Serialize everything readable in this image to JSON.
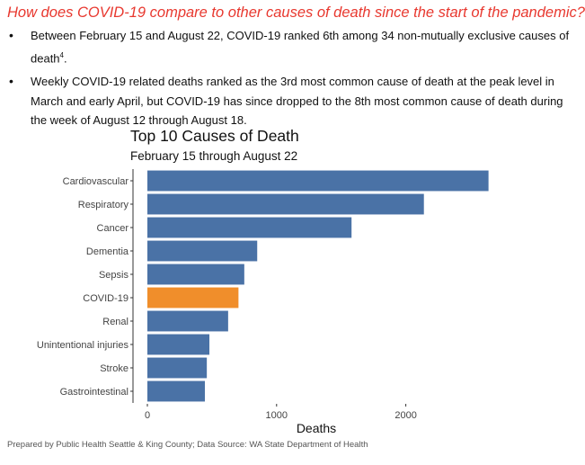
{
  "header": {
    "question": "How does COVID-19 compare to other causes of death since the start of the pandemic?",
    "bullets": [
      {
        "text": "Between February 15 and August 22, COVID-19 ranked 6th among 34 non-mutually exclusive causes of death",
        "sup": "4",
        "tail": "."
      },
      {
        "text": "Weekly COVID-19 related deaths ranked as the 3rd most common cause of death at the peak level in March and early April, but COVID-19 has since dropped to the 8th most common cause of death during the week of August 12 through August 18.",
        "sup": "",
        "tail": ""
      }
    ]
  },
  "chart_data": {
    "type": "bar",
    "orientation": "horizontal",
    "title": "Top 10 Causes of Death",
    "subtitle": "February 15 through August 22",
    "xlabel": "Deaths",
    "ylabel": "",
    "xlim": [
      0,
      2740
    ],
    "xticks": [
      0,
      1000,
      2000
    ],
    "categories": [
      "Cardiovascular",
      "Respiratory",
      "Cancer",
      "Dementia",
      "Sepsis",
      "COVID-19",
      "Renal",
      "Unintentional injuries",
      "Stroke",
      "Gastrointestinal"
    ],
    "values": [
      2640,
      2140,
      1580,
      850,
      750,
      705,
      625,
      480,
      460,
      445
    ],
    "highlight": "COVID-19",
    "colors": {
      "default": "#4a72a6",
      "highlight": "#f08e2b"
    },
    "grid": false
  },
  "footer": {
    "source": "Prepared by Public Health Seattle & King County; Data Source: WA State Department of Health"
  }
}
